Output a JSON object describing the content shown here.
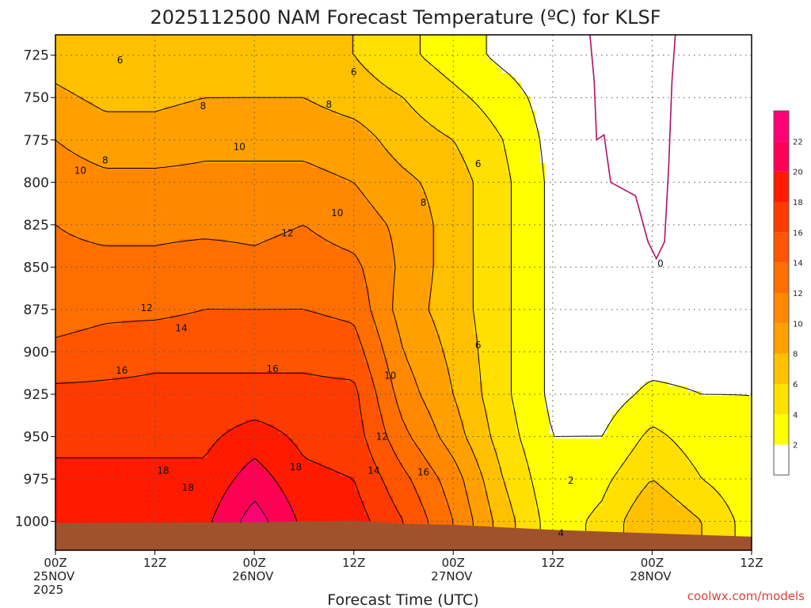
{
  "chart_data": {
    "type": "heatmap",
    "title": "2025112500 NAM Forecast Temperature (ºC) for KLSF",
    "xlabel": "Forecast Time (UTC)",
    "ylabel": "",
    "x_ticks": [
      {
        "hour": 0,
        "label1": "00Z",
        "label2": "25NOV",
        "label3": "2025"
      },
      {
        "hour": 12,
        "label1": "12Z",
        "label2": "",
        "label3": ""
      },
      {
        "hour": 24,
        "label1": "00Z",
        "label2": "26NOV",
        "label3": ""
      },
      {
        "hour": 36,
        "label1": "12Z",
        "label2": "",
        "label3": ""
      },
      {
        "hour": 48,
        "label1": "00Z",
        "label2": "27NOV",
        "label3": ""
      },
      {
        "hour": 60,
        "label1": "12Z",
        "label2": "",
        "label3": ""
      },
      {
        "hour": 72,
        "label1": "00Z",
        "label2": "28NOV",
        "label3": ""
      },
      {
        "hour": 84,
        "label1": "12Z",
        "label2": "",
        "label3": ""
      }
    ],
    "xlim": [
      0,
      84
    ],
    "y_ticks": [
      725,
      750,
      775,
      800,
      825,
      850,
      875,
      900,
      925,
      950,
      975,
      1000
    ],
    "ylim": [
      713,
      1017
    ],
    "y_reversed": true,
    "grid": true,
    "colorbar": {
      "levels": [
        2,
        4,
        6,
        8,
        10,
        12,
        14,
        16,
        18,
        20,
        22
      ],
      "colors": [
        "#ffffff",
        "#ffff00",
        "#ffe000",
        "#ffc000",
        "#ffa000",
        "#ff8800",
        "#ff6e00",
        "#ff5500",
        "#ff3a00",
        "#ff1a00",
        "#ff0055",
        "#ff0077"
      ],
      "placement": "right"
    },
    "temperature_grid": {
      "hours": [
        0,
        6,
        12,
        18,
        24,
        30,
        36,
        42,
        48,
        54,
        60,
        66,
        72,
        78,
        84
      ],
      "pressures": [
        725,
        750,
        775,
        800,
        825,
        850,
        875,
        900,
        925,
        950,
        975,
        1000
      ],
      "values": [
        [
          7,
          6,
          6,
          6,
          6.5,
          6.5,
          6,
          4.5,
          3,
          1.5,
          0.5,
          0.3,
          0.3,
          0.3,
          0.3
        ],
        [
          8.5,
          7.5,
          7.5,
          8,
          8,
          8,
          7,
          6,
          4.5,
          3,
          1,
          0.3,
          0.2,
          0.3,
          0.3
        ],
        [
          10,
          9,
          9,
          9.5,
          9.5,
          9.5,
          9,
          7,
          6,
          4,
          1.3,
          0.3,
          0.1,
          0.3,
          0.5
        ],
        [
          11,
          10.5,
          10.5,
          10.5,
          10.5,
          10.5,
          10,
          8.5,
          7,
          4.5,
          1.5,
          0.5,
          0.3,
          0.5,
          0.5
        ],
        [
          12,
          11.5,
          11.5,
          11.5,
          11.5,
          12,
          11,
          9.5,
          7,
          4.5,
          1.5,
          0.5,
          0.4,
          0.5,
          0.5
        ],
        [
          12.5,
          12.5,
          12.5,
          13,
          12.5,
          13,
          12.5,
          9.5,
          7,
          4.5,
          1.5,
          0.8,
          0.8,
          0.8,
          0.8
        ],
        [
          13,
          13.5,
          13.5,
          14,
          14,
          14,
          13.5,
          9,
          7,
          4.5,
          1.5,
          1,
          1,
          1,
          1
        ],
        [
          14.5,
          15,
          15.5,
          15.5,
          15.5,
          15.5,
          15,
          10,
          7.5,
          4.5,
          1.5,
          1,
          1,
          1,
          1.5
        ],
        [
          16.5,
          16.5,
          16.5,
          16.5,
          16.5,
          16.5,
          16.5,
          11,
          8,
          4.5,
          1.5,
          1,
          2.5,
          2,
          2
        ],
        [
          17.5,
          17.5,
          17.5,
          17.5,
          19,
          17.5,
          17,
          12.5,
          9,
          5,
          2,
          2,
          4.5,
          3,
          2
        ],
        [
          18.5,
          18.5,
          18.5,
          18.5,
          21,
          18.5,
          18,
          14.5,
          11,
          6,
          2.5,
          3.5,
          6,
          4,
          2.5
        ],
        [
          19.5,
          19.5,
          19.5,
          19.5,
          23,
          19.5,
          19,
          16,
          12,
          7,
          3,
          4.5,
          8,
          6,
          3
        ]
      ]
    },
    "contour_labels": [
      {
        "text": "6",
        "hour": 7.8,
        "p": 728
      },
      {
        "text": "6",
        "hour": 36,
        "p": 735
      },
      {
        "text": "8",
        "hour": 17.8,
        "p": 755
      },
      {
        "text": "8",
        "hour": 33,
        "p": 754
      },
      {
        "text": "10",
        "hour": 22.2,
        "p": 779
      },
      {
        "text": "8",
        "hour": 6,
        "p": 787
      },
      {
        "text": "10",
        "hour": 3,
        "p": 793
      },
      {
        "text": "6",
        "hour": 51,
        "p": 789
      },
      {
        "text": "8",
        "hour": 44.4,
        "p": 812
      },
      {
        "text": "10",
        "hour": 34,
        "p": 818
      },
      {
        "text": "12",
        "hour": 28,
        "p": 830
      },
      {
        "text": "0",
        "hour": 73,
        "p": 848
      },
      {
        "text": "12",
        "hour": 11,
        "p": 874
      },
      {
        "text": "14",
        "hour": 15.2,
        "p": 886
      },
      {
        "text": "6",
        "hour": 51,
        "p": 896
      },
      {
        "text": "16",
        "hour": 8,
        "p": 911
      },
      {
        "text": "16",
        "hour": 26.2,
        "p": 910
      },
      {
        "text": "10",
        "hour": 40.4,
        "p": 914
      },
      {
        "text": "12",
        "hour": 39.4,
        "p": 950
      },
      {
        "text": "2",
        "hour": 62.2,
        "p": 976
      },
      {
        "text": "14",
        "hour": 38.4,
        "p": 970
      },
      {
        "text": "16",
        "hour": 44.4,
        "p": 971
      },
      {
        "text": "18",
        "hour": 13,
        "p": 970
      },
      {
        "text": "18",
        "hour": 29,
        "p": 968
      },
      {
        "text": "18",
        "hour": 16,
        "p": 980
      },
      {
        "text": "4",
        "hour": 61,
        "p": 1007
      }
    ],
    "freezing_line": {
      "label": "0",
      "points": [
        [
          64.5,
          713
        ],
        [
          65,
          740
        ],
        [
          65.3,
          775
        ],
        [
          66.2,
          772
        ],
        [
          67,
          800
        ],
        [
          70,
          808
        ],
        [
          71.5,
          835
        ],
        [
          72.5,
          845
        ],
        [
          73.5,
          835
        ],
        [
          74,
          790
        ],
        [
          74.4,
          740
        ],
        [
          74.8,
          713
        ]
      ]
    },
    "ground_color": "#a0522d",
    "credit": "coolwx.com/models"
  }
}
